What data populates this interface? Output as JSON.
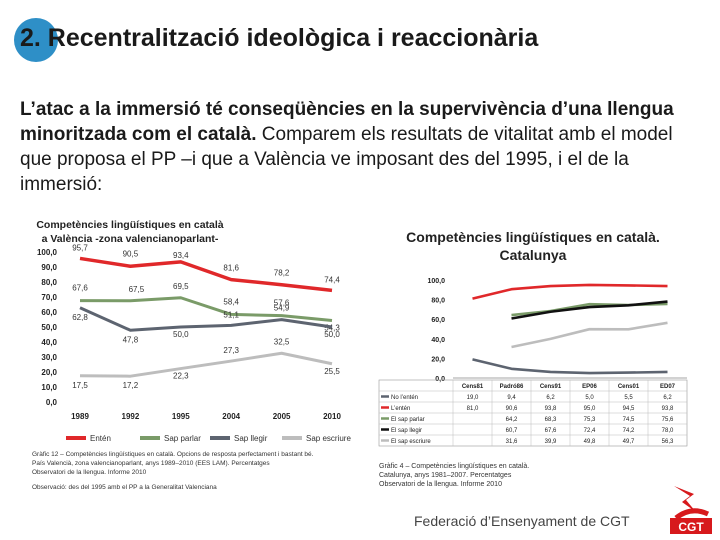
{
  "slide": {
    "title": "2. Recentralització ideològica i reaccionària",
    "body_bold": "L’atac a la immersió té conseqüències en la supervivència d’una llengua minoritzada com el català.",
    "body_rest": " Comparem els resultats de vitalitat amb el model que proposa el PP –i que a València ve imposant des del 1995, i el de la immersió:",
    "footer": "Federació d’Ensenyament de CGT",
    "logo_text": "CGT",
    "accent": "#2e8fc7"
  },
  "chart_data": [
    {
      "type": "line",
      "title_line1": "Competències lingüístiques en català",
      "title_line2": "a València -zona valencianoparlant-",
      "categories": [
        "1989",
        "1992",
        "1995",
        "2004",
        "2005",
        "2010"
      ],
      "ylim": [
        0,
        100
      ],
      "yticks": [
        "0,0",
        "10,0",
        "20,0",
        "30,0",
        "40,0",
        "50,0",
        "60,0",
        "70,0",
        "80,0",
        "90,0",
        "100,0"
      ],
      "series": [
        {
          "name": "Entén",
          "color": "#e0282a",
          "values": [
            95.7,
            90.5,
            93.4,
            81.6,
            78.2,
            74.4
          ],
          "labels": [
            "95,7",
            "90,5",
            "93,4",
            "81,6",
            "78,2",
            "74,4"
          ]
        },
        {
          "name": "Sap parlar",
          "color": "#7a9b68",
          "values": [
            67.6,
            67.5,
            69.5,
            58.4,
            57.6,
            54.3
          ],
          "labels": [
            "67,6",
            "67,5",
            "69,5",
            "58,4",
            "57,6",
            "54,3"
          ]
        },
        {
          "name": "Sap llegir",
          "color": "#5d6470",
          "values": [
            62.8,
            47.8,
            50.0,
            51.1,
            54.9,
            50.0
          ],
          "labels": [
            "62,8",
            "47,8",
            "50,0",
            "51,1",
            "54,9",
            "50,0"
          ]
        },
        {
          "name": "Sap escriure",
          "color": "#bdbdbd",
          "values": [
            17.5,
            17.2,
            22.3,
            27.3,
            32.5,
            25.5
          ],
          "labels": [
            "17,5",
            "17,2",
            "22,3",
            "27,3",
            "32,5",
            "25,5"
          ]
        }
      ],
      "caption": [
        "Gràfic 12 – Competències lingüístiques en català. Opcions de resposta perfectament i bastant bé.",
        "País Valencià, zona valencianoparlant, anys 1989–2010 (EES LAM). Percentatges",
        "Observatori de la llengua. Informe 2010",
        "Observació: des del 1995 amb el PP a la Generalitat Valenciana"
      ]
    },
    {
      "type": "line",
      "title_line1": "Competències lingüístiques en català.",
      "title_line2": "Catalunya",
      "categories": [
        "Cens81",
        "Padró86",
        "Cens91",
        "EP06",
        "Cens01",
        "ED07"
      ],
      "ylim": [
        0,
        100
      ],
      "yticks": [
        "0,0",
        "20,0",
        "40,0",
        "60,0",
        "80,0",
        "100,0"
      ],
      "series": [
        {
          "name": "No l’entén",
          "color": "#5d6470",
          "values": [
            19.0,
            9.4,
            6.2,
            5.0,
            5.5,
            6.2
          ],
          "cells": [
            "19,0",
            "9,4",
            "6,2",
            "5,0",
            "5,5",
            "6,2"
          ]
        },
        {
          "name": "L’entén",
          "color": "#e0282a",
          "values": [
            81.0,
            90.6,
            93.8,
            95.0,
            94.5,
            93.8
          ],
          "cells": [
            "81,0",
            "90,6",
            "93,8",
            "95,0",
            "94,5",
            "93,8"
          ]
        },
        {
          "name": "El sap parlar",
          "color": "#7a9b68",
          "values": [
            null,
            64.2,
            68.3,
            75.3,
            74.5,
            75.6
          ],
          "cells": [
            "",
            "64,2",
            "68,3",
            "75,3",
            "74,5",
            "75,6"
          ]
        },
        {
          "name": "El sap llegir",
          "color": "#111111",
          "values": [
            null,
            60.7,
            67.6,
            72.4,
            74.2,
            78.0
          ],
          "cells": [
            "",
            "60,7",
            "67,6",
            "72,4",
            "74,2",
            "78,0"
          ]
        },
        {
          "name": "El sap escriure",
          "color": "#bdbdbd",
          "values": [
            null,
            31.6,
            39.9,
            49.8,
            49.7,
            56.3
          ],
          "cells": [
            "",
            "31,6",
            "39,9",
            "49,8",
            "49,7",
            "56,3"
          ]
        }
      ],
      "caption": [
        "Gràfic 4 – Competències lingüístiques en català.",
        "Catalunya, anys 1981–2007. Percentatges",
        "Observatori de la llengua. Informe 2010"
      ]
    }
  ]
}
